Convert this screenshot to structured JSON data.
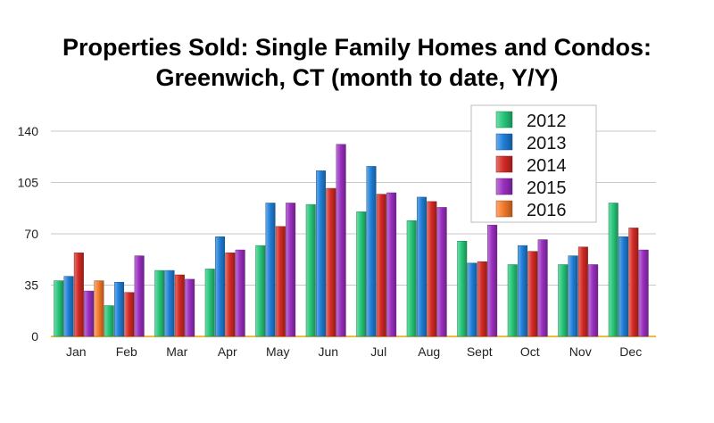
{
  "chart_data": {
    "type": "bar",
    "title_lines": [
      "Properties Sold: Single Family Homes and Condos:",
      "Greenwich, CT (month to date, Y/Y)"
    ],
    "xlabel": "",
    "ylabel": "",
    "categories": [
      "Jan",
      "Feb",
      "Mar",
      "Apr",
      "May",
      "Jun",
      "Jul",
      "Aug",
      "Sept",
      "Oct",
      "Nov",
      "Dec"
    ],
    "ylim": [
      0,
      140
    ],
    "yticks": [
      0,
      35,
      70,
      105,
      140
    ],
    "grid": true,
    "legend_position": "top-right",
    "series": [
      {
        "name": "2012",
        "color": "#27c77a",
        "values": [
          38,
          21,
          45,
          46,
          62,
          90,
          85,
          79,
          65,
          49,
          49,
          91
        ]
      },
      {
        "name": "2013",
        "color": "#1f7fd8",
        "values": [
          41,
          37,
          45,
          68,
          91,
          113,
          116,
          95,
          50,
          62,
          55,
          68
        ]
      },
      {
        "name": "2014",
        "color": "#d42a24",
        "values": [
          57,
          30,
          42,
          57,
          75,
          101,
          97,
          92,
          51,
          58,
          61,
          74
        ]
      },
      {
        "name": "2015",
        "color": "#9a2fc0",
        "values": [
          31,
          55,
          39,
          59,
          91,
          131,
          98,
          88,
          76,
          66,
          49,
          59
        ]
      },
      {
        "name": "2016",
        "color": "#f47a2a",
        "values": [
          38,
          null,
          null,
          null,
          null,
          null,
          null,
          null,
          null,
          null,
          null,
          null
        ]
      }
    ]
  }
}
